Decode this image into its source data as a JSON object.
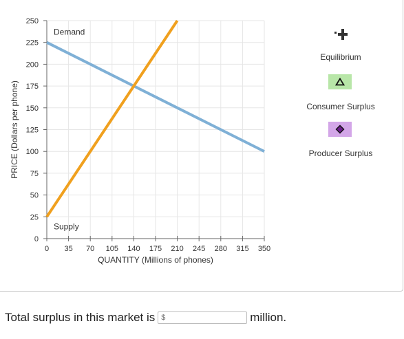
{
  "chart_data": {
    "type": "line",
    "xlabel": "QUANTITY (Millions of phones)",
    "ylabel": "PRICE (Dollars per phone)",
    "xlim": [
      0,
      350
    ],
    "ylim": [
      0,
      250
    ],
    "xticks": [
      0,
      35,
      70,
      105,
      140,
      175,
      210,
      245,
      280,
      315,
      350
    ],
    "yticks": [
      0,
      25,
      50,
      75,
      100,
      125,
      150,
      175,
      200,
      225,
      250
    ],
    "grid": true,
    "series": [
      {
        "name": "Demand",
        "color": "#7fb0d6",
        "x": [
          0,
          350
        ],
        "y": [
          225,
          100
        ]
      },
      {
        "name": "Supply",
        "color": "#f0a01e",
        "x": [
          0,
          210
        ],
        "y": [
          25,
          250
        ]
      }
    ],
    "annotations": [
      {
        "text": "Demand",
        "x": 0,
        "y": 225
      },
      {
        "text": "Supply",
        "x": 0,
        "y": 25
      }
    ]
  },
  "tools": {
    "equilibrium": {
      "label": "Equilibrium",
      "icon": "plus-marker-icon"
    },
    "consumer_surplus": {
      "label": "Consumer Surplus",
      "icon": "triangle-icon",
      "color": "#b8e6a8"
    },
    "producer_surplus": {
      "label": "Producer Surplus",
      "icon": "diamond-icon",
      "color": "#d3a6e8"
    }
  },
  "question": {
    "prefix": "Total surplus in this market is",
    "placeholder": "$",
    "suffix": "million."
  }
}
